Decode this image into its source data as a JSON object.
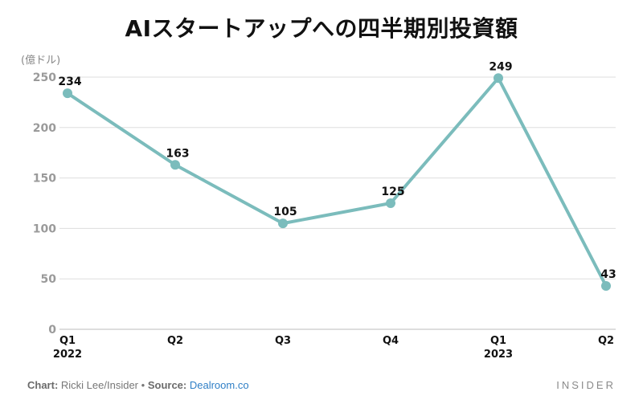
{
  "title": "AIスタートアップへの四半期別投資額",
  "unit_label": "(億ドル)",
  "footer": {
    "chart_prefix": "Chart:",
    "chart_author": "Ricki Lee/Insider",
    "separator": "•",
    "source_prefix": "Source:",
    "source_name": "Dealroom.co"
  },
  "brand": "INSIDER",
  "colors": {
    "line": "#7bbcbc",
    "grid": "#dddddd",
    "axis_text": "#9a9a9a",
    "label_text": "#111111"
  },
  "chart_data": {
    "type": "line",
    "title": "AIスタートアップへの四半期別投資額",
    "ylabel": "(億ドル)",
    "xlabel": "",
    "categories": [
      "Q1",
      "Q2",
      "Q3",
      "Q4",
      "Q1",
      "Q2"
    ],
    "year_labels": [
      "2022",
      "",
      "",
      "",
      "2023",
      ""
    ],
    "series": [
      {
        "values": [
          234,
          163,
          105,
          125,
          249,
          43
        ]
      }
    ],
    "data_labels": [
      "234",
      "163",
      "105",
      "125",
      "249",
      "43"
    ],
    "ylim": [
      0,
      250
    ],
    "yticks": [
      0,
      50,
      100,
      150,
      200,
      250
    ],
    "grid": true,
    "legend": "none"
  }
}
